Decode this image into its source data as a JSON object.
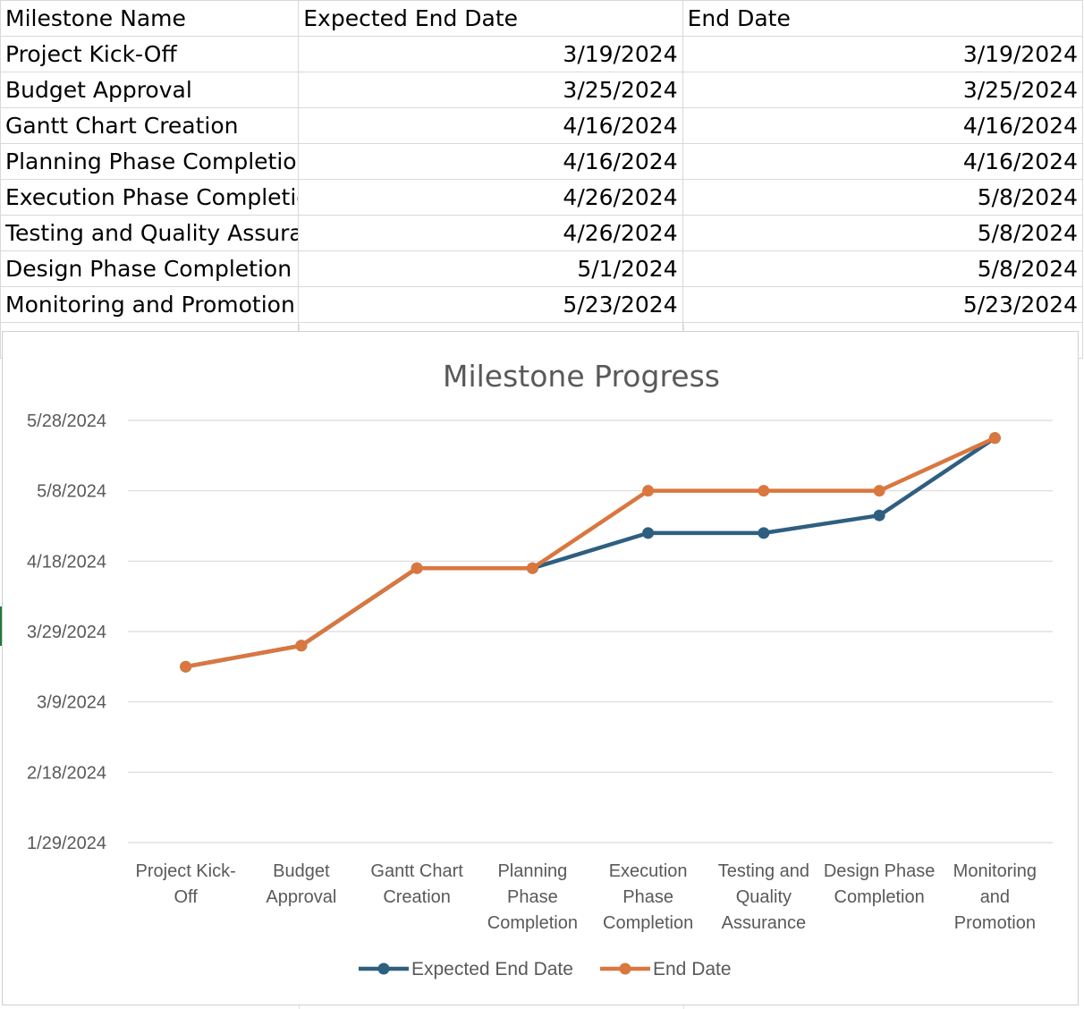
{
  "table": {
    "headers": [
      "Milestone Name",
      "Expected End Date",
      "End Date"
    ],
    "rows": [
      [
        "Project Kick-Off",
        "3/19/2024",
        "3/19/2024"
      ],
      [
        "Budget Approval",
        "3/25/2024",
        "3/25/2024"
      ],
      [
        "Gantt Chart Creation",
        "4/16/2024",
        "4/16/2024"
      ],
      [
        "Planning Phase Completion",
        "4/16/2024",
        "4/16/2024"
      ],
      [
        "Execution Phase Completion",
        "4/26/2024",
        "5/8/2024"
      ],
      [
        "Testing and Quality Assurance",
        "4/26/2024",
        "5/8/2024"
      ],
      [
        "Design Phase Completion",
        "5/1/2024",
        "5/8/2024"
      ],
      [
        "Monitoring and Promotion",
        "5/23/2024",
        "5/23/2024"
      ]
    ]
  },
  "chart_data": {
    "type": "line",
    "title": "Milestone Progress",
    "xlabel": "",
    "ylabel": "",
    "categories": [
      "Project Kick-Off",
      "Budget Approval",
      "Gantt Chart Creation",
      "Planning Phase Completion",
      "Execution Phase Completion",
      "Testing and Quality Assurance",
      "Design Phase Completion",
      "Monitoring and Promotion"
    ],
    "category_tick_labels": [
      [
        "Project Kick-",
        "Off"
      ],
      [
        "Budget",
        "Approval"
      ],
      [
        "Gantt Chart",
        "Creation"
      ],
      [
        "Planning",
        "Phase",
        "Completion"
      ],
      [
        "Execution",
        "Phase",
        "Completion"
      ],
      [
        "Testing and",
        "Quality",
        "Assurance"
      ],
      [
        "Design Phase",
        "Completion"
      ],
      [
        "Monitoring",
        "and",
        "Promotion"
      ]
    ],
    "y_ticks": [
      "1/29/2024",
      "2/18/2024",
      "3/9/2024",
      "3/29/2024",
      "4/18/2024",
      "5/8/2024",
      "5/28/2024"
    ],
    "ylim": [
      "1/29/2024",
      "5/28/2024"
    ],
    "series": [
      {
        "name": "Expected End Date",
        "color": "#2e5f80",
        "values": [
          "3/19/2024",
          "3/25/2024",
          "4/16/2024",
          "4/16/2024",
          "4/26/2024",
          "4/26/2024",
          "5/1/2024",
          "5/23/2024"
        ]
      },
      {
        "name": "End Date",
        "color": "#d9773f",
        "values": [
          "3/19/2024",
          "3/25/2024",
          "4/16/2024",
          "4/16/2024",
          "5/8/2024",
          "5/8/2024",
          "5/8/2024",
          "5/23/2024"
        ]
      }
    ],
    "grid": true,
    "legend_position": "bottom"
  }
}
